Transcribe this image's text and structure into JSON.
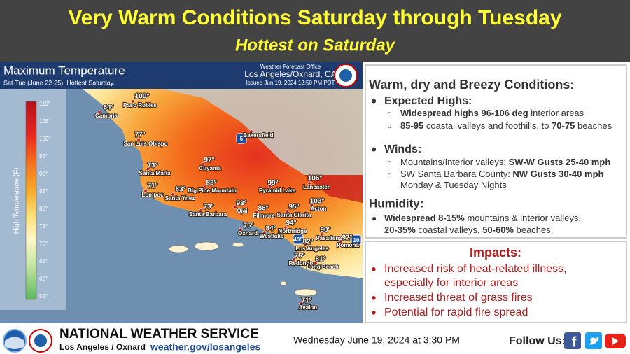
{
  "header": {
    "title": "Very Warm Conditions Saturday through Tuesday",
    "subtitle": "Hottest on Saturday"
  },
  "map": {
    "title": "Maximum Temperature",
    "subtitle": "Sat-Tue (June 22-25). Hottest Saturday.",
    "office_line1": "Weather Forecast Office",
    "office_line2": "Los Angeles/Oxnard, CA",
    "issued": "Issued Jun 19, 2024 12:50 PM PDT",
    "legend": {
      "title": "High Temperature (F)",
      "labels": [
        "110°",
        "105°",
        "100°",
        "95°",
        "90°",
        "85°",
        "80°",
        "75°",
        "70°",
        "65°",
        "60°",
        "55°"
      ]
    },
    "highways": [
      "5",
      "405",
      "10"
    ],
    "cities": [
      {
        "name": "Paso Robles",
        "temp": "100°"
      },
      {
        "name": "Cambria",
        "temp": "64°"
      },
      {
        "name": "San Luis Obispo",
        "temp": "77°"
      },
      {
        "name": "Santa Maria",
        "temp": "73°"
      },
      {
        "name": "Lompoc",
        "temp": "71°"
      },
      {
        "name": "Cuyama",
        "temp": "97°"
      },
      {
        "name": "Big Pine Mountain",
        "temp": "83°"
      },
      {
        "name": "Santa Ynez",
        "temp": "83°"
      },
      {
        "name": "Santa Barbara",
        "temp": "73°"
      },
      {
        "name": "Ojai",
        "temp": "93°"
      },
      {
        "name": "Fillmore",
        "temp": "86°"
      },
      {
        "name": "Oxnard",
        "temp": "75°"
      },
      {
        "name": "Westlake",
        "temp": "84°"
      },
      {
        "name": "Pyramid Lake",
        "temp": "99°"
      },
      {
        "name": "Lancaster",
        "temp": "106°"
      },
      {
        "name": "Acton",
        "temp": "103°"
      },
      {
        "name": "Santa Clarita",
        "temp": "95°"
      },
      {
        "name": "Northridge",
        "temp": "94°"
      },
      {
        "name": "Pasadena",
        "temp": "90°"
      },
      {
        "name": "Pomona",
        "temp": "92°"
      },
      {
        "name": "Los Angeles",
        "temp": "82°"
      },
      {
        "name": "Redondo",
        "temp": "76°"
      },
      {
        "name": "Long Beach",
        "temp": "81°"
      },
      {
        "name": "Avalon",
        "temp": "71°"
      },
      {
        "name": "Bakersfield"
      }
    ]
  },
  "conditions": {
    "title": "Warm, dry and Breezy Conditions:",
    "highs": {
      "heading": "Expected Highs:",
      "lines": [
        [
          {
            "text": "Widespread highs 96-106 deg",
            "bold": true
          },
          {
            "text": " interior areas"
          }
        ],
        [
          {
            "text": "85-95",
            "bold": true
          },
          {
            "text": " coastal valleys and foothills, to "
          },
          {
            "text": "70-75",
            "bold": true
          },
          {
            "text": " beaches"
          }
        ]
      ]
    },
    "winds": {
      "heading": "Winds:",
      "lines": [
        [
          {
            "text": "Mountains/Interior valleys: "
          },
          {
            "text": "SW-W Gusts 25-40 mph",
            "bold": true
          }
        ],
        [
          {
            "text": "SW Santa Barbara County: "
          },
          {
            "text": "NW Gusts 30-40 mph",
            "bold": true
          }
        ],
        [
          {
            "text": "Monday & Tuesday Nights"
          }
        ]
      ]
    },
    "humidity": {
      "heading": "Humidity:",
      "lines": [
        [
          {
            "text": "Widespread 8-15%",
            "bold": true
          },
          {
            "text": " mountains & interior valleys,"
          }
        ],
        [
          {
            "text": "20-35%",
            "bold": true
          },
          {
            "text": " coastal valleys, "
          },
          {
            "text": "50-60%",
            "bold": true
          },
          {
            "text": " beaches."
          }
        ]
      ]
    }
  },
  "impacts": {
    "title": "Impacts:",
    "lines": [
      "Increased risk of heat-related illness,",
      "especially for interior areas",
      "Increased threat of grass fires",
      "Potential for rapid fire spread"
    ]
  },
  "footer": {
    "agency": "NATIONAL WEATHER SERVICE",
    "office": "Los Angeles / Oxnard",
    "url": "weather.gov/losangeles",
    "datetime": "Wednesday June 19, 2024 at 3:30 PM",
    "follow": "Follow Us:"
  }
}
